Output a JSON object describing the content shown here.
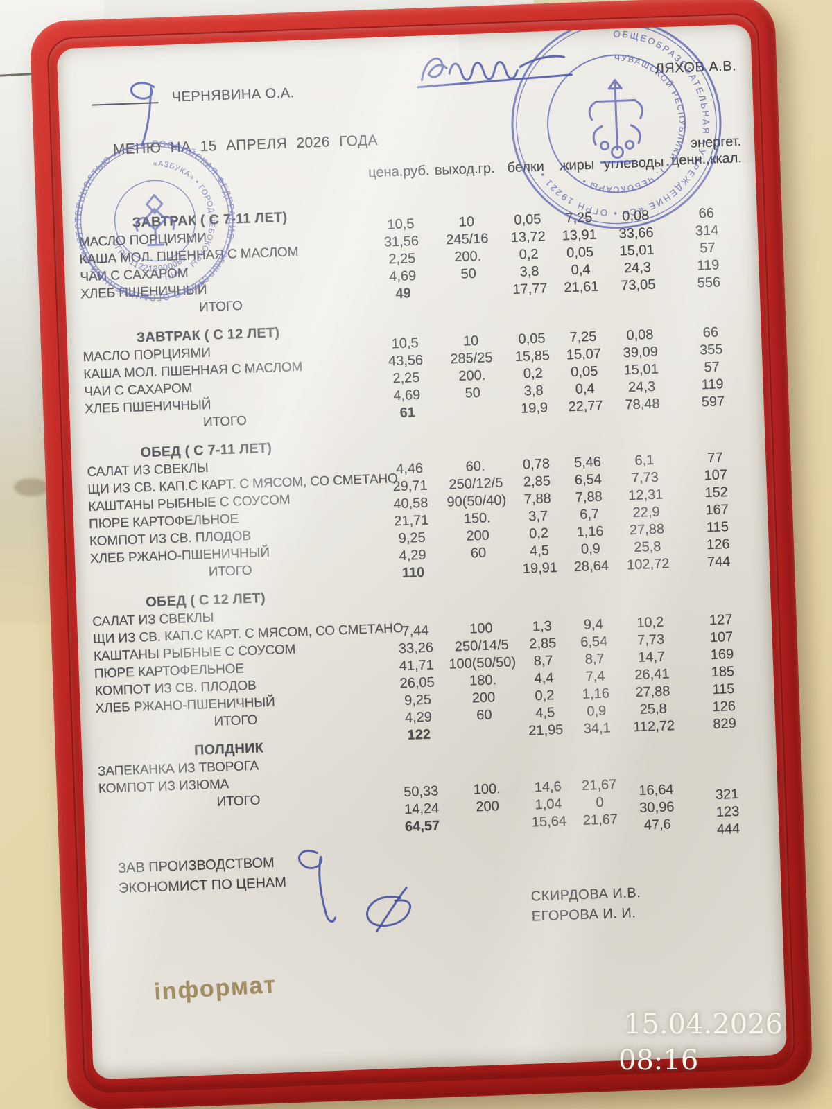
{
  "scene": {
    "timestamp": {
      "date": "15.04.2026",
      "time": "08:16"
    }
  },
  "frame": {
    "logo": "inформат",
    "colors": {
      "frame_red": "#bb2421",
      "stamp_blue": "#4a55ab",
      "ink_blue": "#3c4aa0",
      "logo_gold": "#98804e"
    }
  },
  "document": {
    "approvers": {
      "left": "ЧЕРНЯВИНА О.А.",
      "right": "ЛЯХОВ А.В."
    },
    "title_text": "МЕНЮ НА 15 АПРЕЛЯ 2026 ГОДА",
    "columns": {
      "price": "цена.руб.",
      "out": "выход.гр.",
      "protein": "белки",
      "fat": "жиры",
      "carbs": "углеводы",
      "energy_line1": "энергет.",
      "energy_line2": "ценн.,ккал."
    },
    "sections": [
      {
        "title": "ЗАВТРАК ( С 7-11 ЛЕТ)",
        "rows": [
          {
            "name": "МАСЛО ПОРЦИЯМИ",
            "vals": [
              "10,5",
              "10",
              "0,05",
              "7,25",
              "0,08",
              "66"
            ]
          },
          {
            "name": "КАША МОЛ. ПШЕННАЯ С МАСЛОМ",
            "vals": [
              "31,56",
              "245/16",
              "13,72",
              "13,91",
              "33,66",
              "314"
            ]
          },
          {
            "name": "ЧАИ С САХАРОМ",
            "vals": [
              "2,25",
              "200.",
              "0,2",
              "0,05",
              "15,01",
              "57"
            ]
          },
          {
            "name": "ХЛЕБ ПШЕНИЧНЫЙ",
            "vals": [
              "4,69",
              "50",
              "3,8",
              "0,4",
              "24,3",
              "119"
            ]
          }
        ],
        "total": {
          "name": "ИТОГО",
          "vals": [
            "49",
            "",
            "17,77",
            "21,61",
            "73,05",
            "556"
          ]
        }
      },
      {
        "title": "ЗАВТРАК ( С 12 ЛЕТ)",
        "rows": [
          {
            "name": "МАСЛО ПОРЦИЯМИ",
            "vals": [
              "10,5",
              "10",
              "0,05",
              "7,25",
              "0,08",
              "66"
            ]
          },
          {
            "name": "КАША МОЛ. ПШЕННАЯ С МАСЛОМ",
            "vals": [
              "43,56",
              "285/25",
              "15,85",
              "15,07",
              "39,09",
              "355"
            ]
          },
          {
            "name": "ЧАИ С САХАРОМ",
            "vals": [
              "2,25",
              "200.",
              "0,2",
              "0,05",
              "15,01",
              "57"
            ]
          },
          {
            "name": "ХЛЕБ ПШЕНИЧНЫЙ",
            "vals": [
              "4,69",
              "50",
              "3,8",
              "0,4",
              "24,3",
              "119"
            ]
          }
        ],
        "total": {
          "name": "ИТОГО",
          "vals": [
            "61",
            "",
            "19,9",
            "22,77",
            "78,48",
            "597"
          ]
        }
      },
      {
        "title": "ОБЕД ( С 7-11 ЛЕТ)",
        "rows": [
          {
            "name": "САЛАТ ИЗ СВЕКЛЫ",
            "vals": [
              "4,46",
              "60.",
              "0,78",
              "5,46",
              "6,1",
              "77"
            ]
          },
          {
            "name": "ЩИ ИЗ СВ. КАП.С КАРТ. С МЯСОМ, СО СМЕТАНО",
            "vals": [
              "29,71",
              "250/12/5",
              "2,85",
              "6,54",
              "7,73",
              "107"
            ]
          },
          {
            "name": "КАШТАНЫ РЫБНЫЕ С СОУСОМ",
            "vals": [
              "40,58",
              "90(50/40)",
              "7,88",
              "7,88",
              "12,31",
              "152"
            ]
          },
          {
            "name": "ПЮРЕ КАРТОФЕЛЬНОЕ",
            "vals": [
              "21,71",
              "150.",
              "3,7",
              "6,7",
              "22,9",
              "167"
            ]
          },
          {
            "name": "КОМПОТ ИЗ СВ. ПЛОДОВ",
            "vals": [
              "9,25",
              "200",
              "0,2",
              "1,16",
              "27,88",
              "115"
            ]
          },
          {
            "name": "ХЛЕБ РЖАНО-ПШЕНИЧНЫЙ",
            "vals": [
              "4,29",
              "60",
              "4,5",
              "0,9",
              "25,8",
              "126"
            ]
          }
        ],
        "total": {
          "name": "ИТОГО",
          "vals": [
            "110",
            "",
            "19,91",
            "28,64",
            "102,72",
            "744"
          ]
        }
      },
      {
        "title": "ОБЕД ( С 12 ЛЕТ)",
        "rows": [
          {
            "name": "САЛАТ ИЗ СВЕКЛЫ",
            "vals": [
              "7,44",
              "100",
              "1,3",
              "9,4",
              "10,2",
              "127"
            ]
          },
          {
            "name": "ЩИ ИЗ СВ. КАП.С КАРТ. С МЯСОМ, СО СМЕТАНО",
            "vals": [
              "33,26",
              "250/14/5",
              "2,85",
              "6,54",
              "7,73",
              "107"
            ]
          },
          {
            "name": "КАШТАНЫ РЫБНЫЕ С СОУСОМ",
            "vals": [
              "41,71",
              "100(50/50)",
              "8,7",
              "8,7",
              "14,7",
              "169"
            ]
          },
          {
            "name": "ПЮРЕ КАРТОФЕЛЬНОЕ",
            "vals": [
              "26,05",
              "180.",
              "4,4",
              "7,4",
              "26,41",
              "185"
            ]
          },
          {
            "name": "КОМПОТ ИЗ СВ. ПЛОДОВ",
            "vals": [
              "9,25",
              "200",
              "0,2",
              "1,16",
              "27,88",
              "115"
            ]
          },
          {
            "name": "ХЛЕБ РЖАНО-ПШЕНИЧНЫЙ",
            "vals": [
              "4,29",
              "60",
              "4,5",
              "0,9",
              "25,8",
              "126"
            ]
          }
        ],
        "total": {
          "name": "ИТОГО",
          "vals": [
            "122",
            "",
            "21,95",
            "34,1",
            "112,72",
            "829"
          ]
        }
      },
      {
        "title": "ПОЛДНИК",
        "rows": [
          {
            "name": "ЗАПЕКАНКА ИЗ ТВОРОГА",
            "vals": [
              "50,33",
              "100.",
              "14,6",
              "21,67",
              "16,64",
              "321"
            ]
          },
          {
            "name": "КОМПОТ ИЗ ИЗЮМА",
            "vals": [
              "14,24",
              "200",
              "1,04",
              "0",
              "30,96",
              "123"
            ]
          }
        ],
        "total": {
          "name": "ИТОГО",
          "vals": [
            "64,57",
            "",
            "15,64",
            "21,67",
            "47,6",
            "444"
          ]
        }
      }
    ],
    "signature_block": {
      "roles": [
        "ЗАВ ПРОИЗВОДСТВОМ",
        "ЭКОНОМИСТ ПО ЦЕНАМ"
      ],
      "names": [
        "СКИРДОВА И.В.",
        "ЕГОРОВА И. И."
      ]
    },
    "stamps": {
      "left": {
        "outer": "РОССИЙСКАЯ ФЕДЕРАЦИЯ • ОБЩЕСТВО С ОГРАНИЧЕННОЙ ОТВЕТСТВЕННОСТЬЮ •",
        "mid": "«АЗБУКА» • ГОРОД ЧЕБОКСАРЫ • ИНН •",
        "inner": "ОГРН 112213000085"
      },
      "right": {
        "outer": "ОБЩЕОБРАЗОВАТЕЛЬНАЯ • УЧРЕЖДЕНИЕ «С» • ОГРН 19221 •",
        "inner": "ЧУВАШСКОЙ РЕСПУБЛИКИ • Г. ЧЕБОКСАРЫ •"
      }
    }
  }
}
